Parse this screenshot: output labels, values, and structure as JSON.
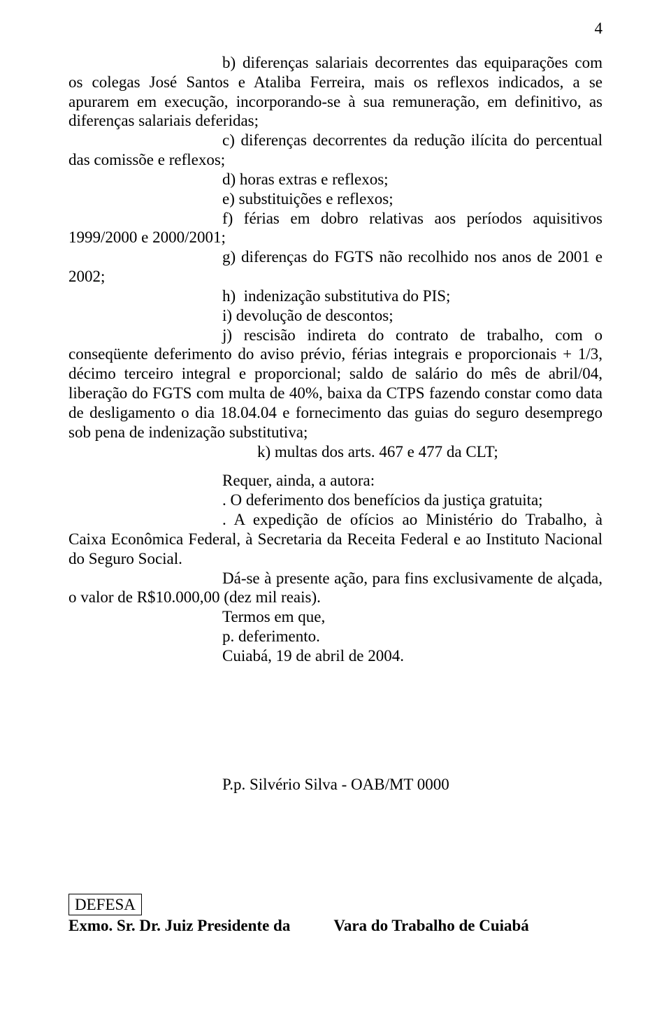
{
  "page_number": "4",
  "body": {
    "p1": "b) diferenças salariais decorrentes das equiparações com os colegas José Santos e Ataliba Ferreira, mais os reflexos indicados, a se apurarem em execução, incorporando-se à sua remuneração, em definitivo, as diferenças salariais deferidas;",
    "p2": "c) diferenças decorrentes da redução ilícita do percentual das comissõe e reflexos;",
    "p3": "d) horas extras e reflexos;",
    "p4": "e) substituições e reflexos;",
    "p5": "f) férias em dobro relativas aos períodos aquisitivos 1999/2000 e 2000/2001;",
    "p6": "g) diferenças do FGTS não recolhido nos anos de 2001 e 2002;",
    "p7_a": "h)",
    "p7_b": "indenização substitutiva do PIS;",
    "p8": "i) devolução de descontos;",
    "p9": "j) rescisão indireta do contrato de trabalho, com o conseqüente deferimento do aviso prévio, férias integrais e proporcionais + 1/3, décimo terceiro integral e proporcional; saldo de salário do mês de abril/04, liberação do FGTS com multa de 40%, baixa da CTPS fazendo constar como data de desligamento o dia 18.04.04 e fornecimento das guias do seguro desemprego sob pena de indenização substitutiva;",
    "p10": "k) multas dos arts. 467 e 477 da CLT;",
    "p11": "Requer, ainda, a autora:",
    "p12": ". O deferimento dos benefícios da justiça gratuita;",
    "p13": ". A expedição de ofícios ao Ministério do Trabalho, à Caixa Econômica Federal, à Secretaria da Receita Federal e ao Instituto Nacional do Seguro Social.",
    "p14": "Dá-se à presente ação, para fins exclusivamente de alçada, o valor de R$10.000,00 (dez mil reais).",
    "p15": "Termos em que,",
    "p16": "p. deferimento.",
    "p17": "Cuiabá,  19 de abril de 2004."
  },
  "signature": "P.p. Silvério Silva - OAB/MT 0000",
  "defesa_label": "DEFESA",
  "last_line_a": "Exmo. Sr. Dr. Juiz Presidente da",
  "last_line_b": "Vara do Trabalho de Cuiabá"
}
